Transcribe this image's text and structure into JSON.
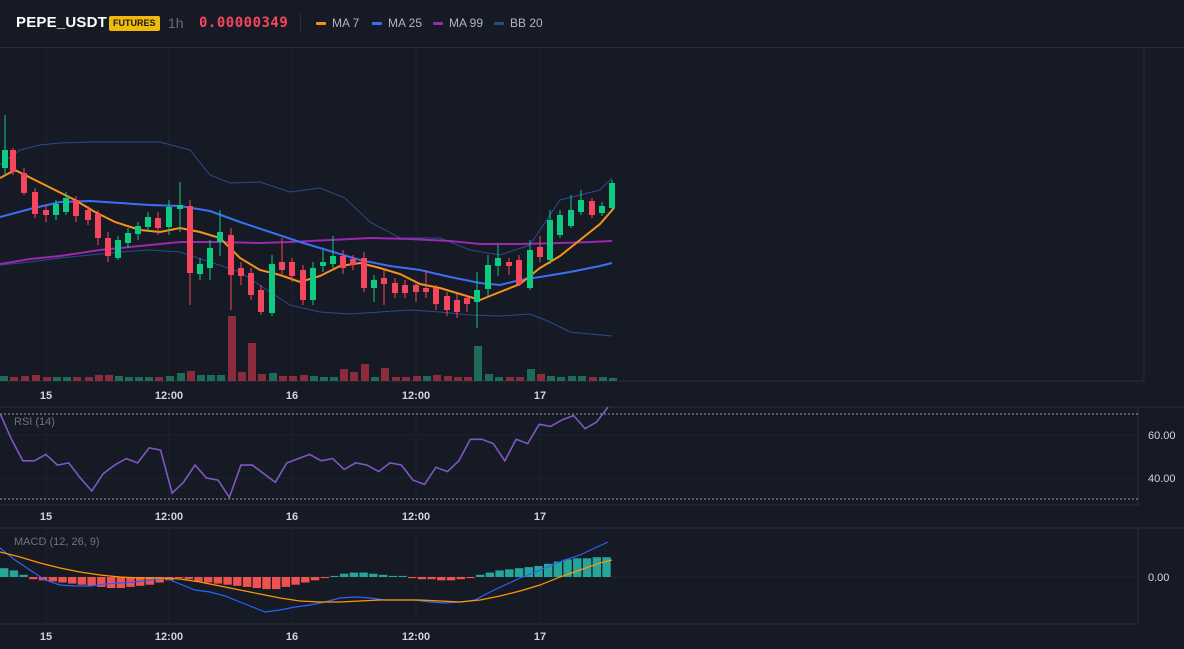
{
  "header": {
    "symbol": "PEPE_USDT",
    "badge": "FUTURES",
    "interval": "1h",
    "price": "0.00000349",
    "indicators": [
      {
        "label": "MA 7",
        "color": "#f7931a"
      },
      {
        "label": "MA 25",
        "color": "#3b6ff5"
      },
      {
        "label": "MA 99",
        "color": "#9c27b0"
      },
      {
        "label": "BB 20",
        "color": "#2c4a8a"
      }
    ]
  },
  "colors": {
    "background": "#161a25",
    "up": "#0ecb81",
    "down": "#f6465d",
    "rsi_line": "#7e57c2",
    "macd_line": "#2962ff",
    "signal_line": "#ff9800"
  },
  "main_chart": {
    "x_ticks": [
      "15",
      "12:00",
      "16",
      "12:00",
      "17"
    ]
  },
  "rsi_panel": {
    "title": "RSI (14)",
    "y_labels": [
      "60.00",
      "40.00"
    ],
    "x_ticks": [
      "15",
      "12:00",
      "16",
      "12:00",
      "17"
    ],
    "values": [
      70,
      58,
      48,
      48,
      51,
      46,
      47,
      40,
      34,
      42,
      46,
      49,
      47,
      54,
      53,
      33,
      38,
      46,
      40,
      39,
      31,
      46,
      46,
      42,
      38,
      47,
      49,
      51,
      48,
      49,
      44,
      47,
      46,
      43,
      47,
      46,
      39,
      37,
      45,
      43,
      48,
      58,
      58,
      56,
      48,
      58,
      56,
      65,
      64,
      67,
      69,
      63,
      66,
      73
    ]
  },
  "macd_panel": {
    "title": "MACD (12, 26, 9)",
    "y_labels": [
      "0.00"
    ],
    "x_ticks": [
      "15",
      "12:00",
      "16",
      "12:00",
      "17"
    ],
    "histogram": [
      4,
      3,
      1,
      -1,
      -1.5,
      -2,
      -2.5,
      -3,
      -3.5,
      -4,
      -4.5,
      -5,
      -5,
      -4.5,
      -4,
      -3.5,
      -2.5,
      -1.5,
      -0.5,
      -1,
      -2,
      -2.5,
      -3,
      -3.5,
      -4,
      -4.5,
      -5,
      -5.5,
      -5.5,
      -4.5,
      -3.5,
      -2.5,
      -1.5,
      -0.5,
      0.5,
      1.5,
      2,
      2,
      1.5,
      1,
      0.5,
      0.5,
      -0.5,
      -1,
      -1,
      -1.5,
      -1.5,
      -1,
      -0.5,
      1,
      2,
      3,
      3.5,
      4,
      4.5,
      5,
      6,
      7,
      8,
      8.5,
      8.5,
      9,
      9
    ]
  }
}
